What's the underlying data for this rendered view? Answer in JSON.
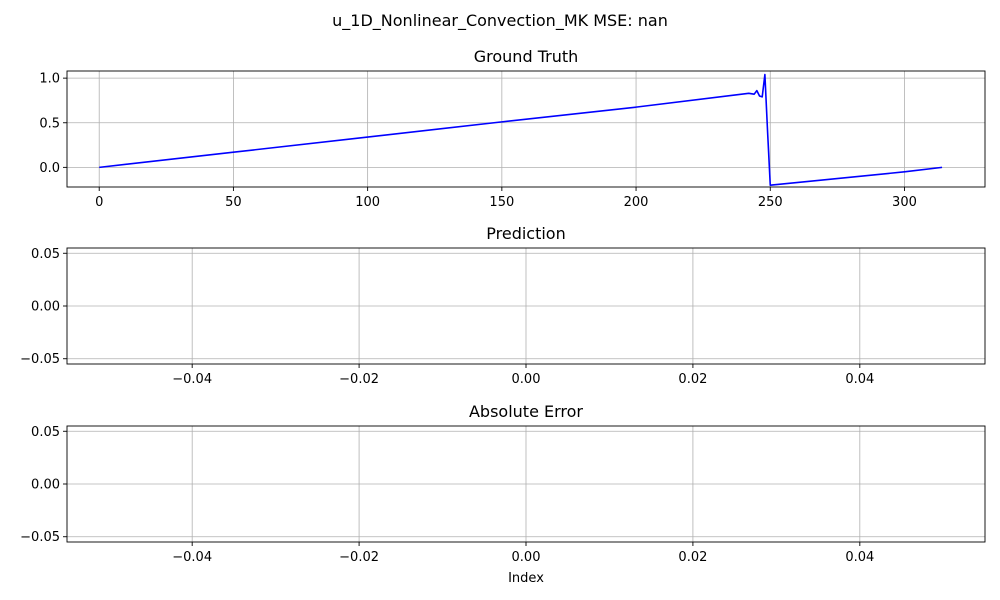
{
  "suptitle": "u_1D_Nonlinear_Convection_MK MSE: nan",
  "chart_data": [
    {
      "type": "line",
      "title": "Ground Truth",
      "xlabel": "",
      "ylabel": "",
      "grid": true,
      "xlim": [
        -12,
        330
      ],
      "ylim": [
        -0.22,
        1.08
      ],
      "xticks": [
        0,
        50,
        100,
        150,
        200,
        250,
        300
      ],
      "xtick_labels": [
        "0",
        "50",
        "100",
        "150",
        "200",
        "250",
        "300"
      ],
      "yticks": [
        0.0,
        0.5,
        1.0
      ],
      "ytick_labels": [
        "0.0",
        "0.5",
        "1.0"
      ],
      "series": [
        {
          "color": "#0000ff",
          "x": [
            0,
            50,
            100,
            150,
            200,
            242,
            244,
            245,
            246,
            247,
            248,
            249,
            250,
            300,
            314
          ],
          "y": [
            0.0,
            0.17,
            0.34,
            0.51,
            0.675,
            0.83,
            0.82,
            0.86,
            0.8,
            0.79,
            1.04,
            0.4,
            -0.2,
            -0.05,
            0.0
          ]
        }
      ]
    },
    {
      "type": "line",
      "title": "Prediction",
      "xlabel": "",
      "ylabel": "",
      "grid": true,
      "xlim": [
        -0.055,
        0.055
      ],
      "ylim": [
        -0.055,
        0.055
      ],
      "xticks": [
        -0.04,
        -0.02,
        0.0,
        0.02,
        0.04
      ],
      "xtick_labels": [
        "−0.04",
        "−0.02",
        "0.00",
        "0.02",
        "0.04"
      ],
      "yticks": [
        -0.05,
        0.0,
        0.05
      ],
      "ytick_labels": [
        "−0.05",
        "0.00",
        "0.05"
      ],
      "series": []
    },
    {
      "type": "line",
      "title": "Absolute Error",
      "xlabel": "Index",
      "ylabel": "",
      "grid": true,
      "xlim": [
        -0.055,
        0.055
      ],
      "ylim": [
        -0.055,
        0.055
      ],
      "xticks": [
        -0.04,
        -0.02,
        0.0,
        0.02,
        0.04
      ],
      "xtick_labels": [
        "−0.04",
        "−0.02",
        "0.00",
        "0.02",
        "0.04"
      ],
      "yticks": [
        -0.05,
        0.0,
        0.05
      ],
      "ytick_labels": [
        "−0.05",
        "0.00",
        "0.05"
      ],
      "series": []
    }
  ]
}
